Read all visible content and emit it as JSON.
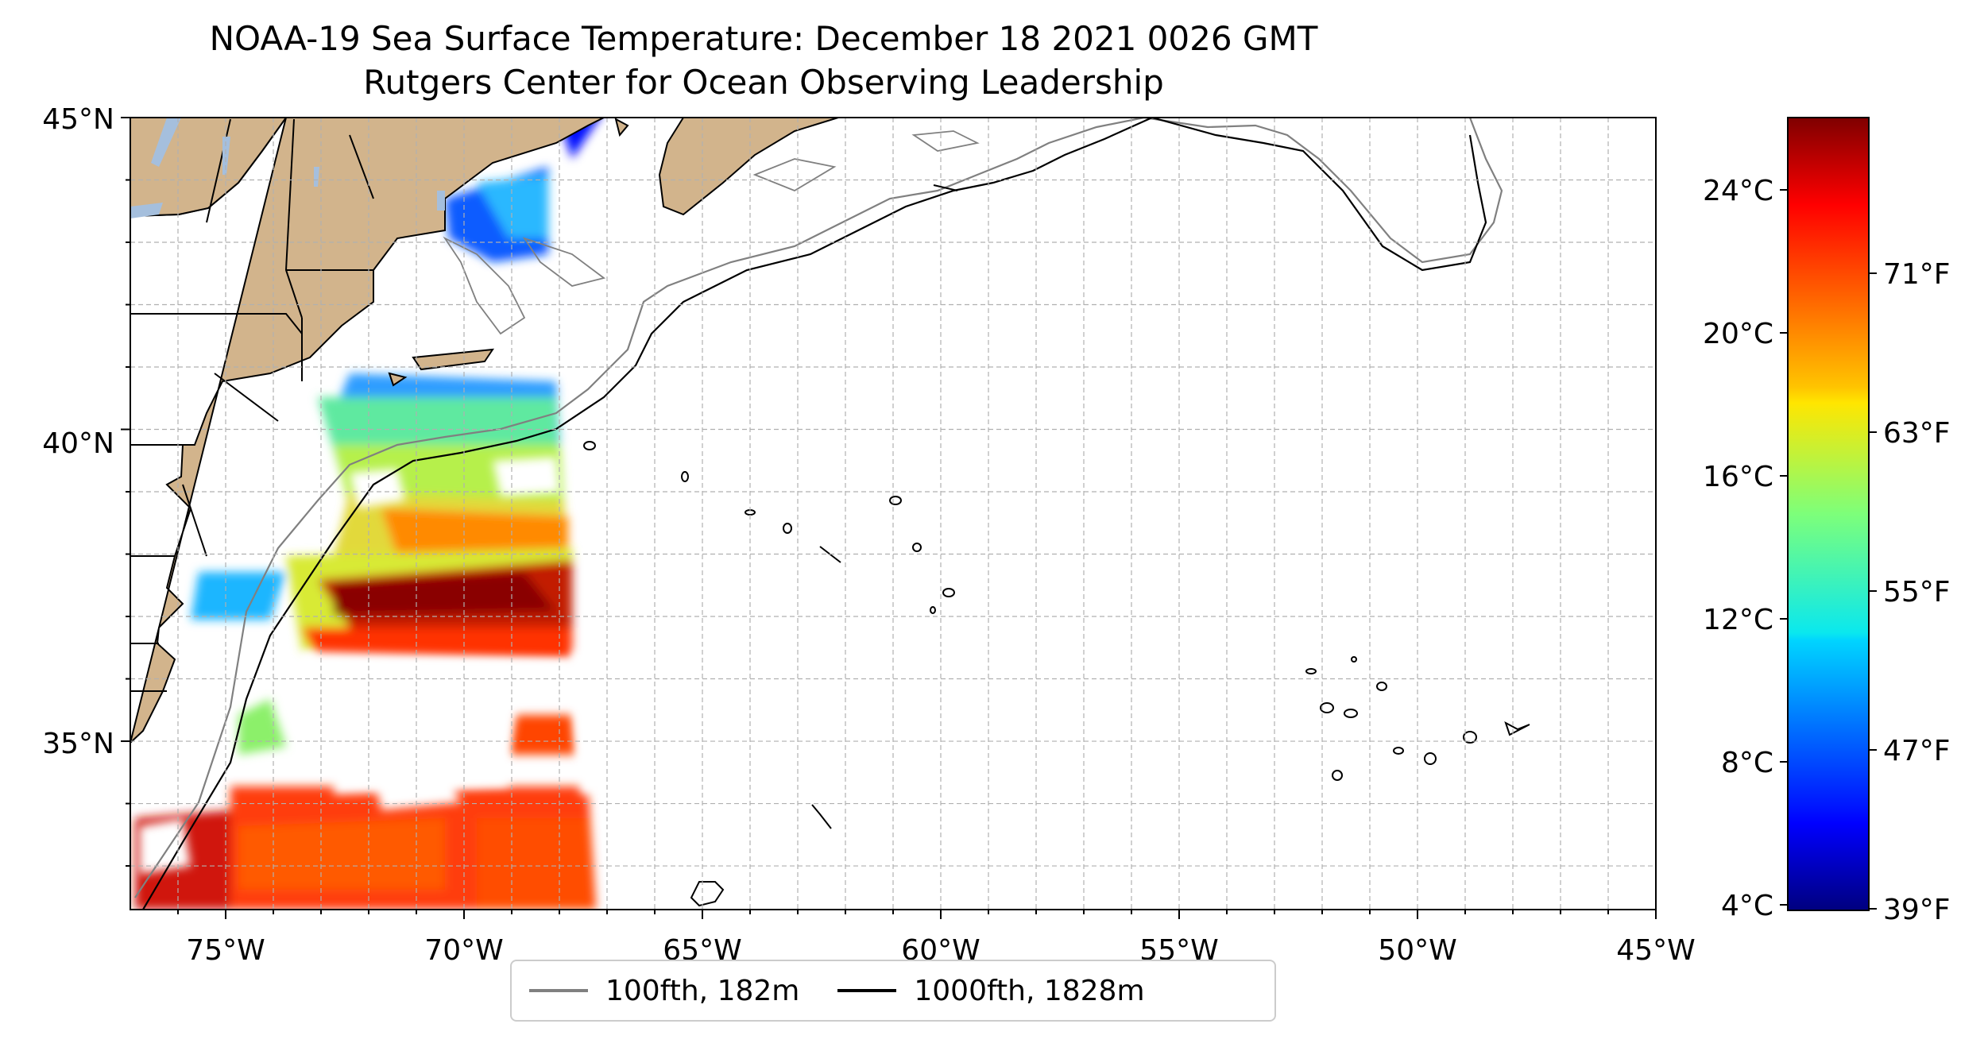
{
  "title": {
    "line1": "NOAA-19 Sea Surface Temperature: December 18 2021 0026 GMT",
    "line2": "Rutgers Center for Ocean Observing Leadership"
  },
  "map": {
    "lon_range": [
      -77,
      -45
    ],
    "lat_range": [
      32.3,
      45
    ],
    "lon_ticks": [
      "75°W",
      "70°W",
      "65°W",
      "60°W",
      "55°W",
      "50°W",
      "45°W"
    ],
    "lat_ticks": [
      "45°N",
      "40°N",
      "35°N"
    ],
    "grid": true,
    "colors": {
      "land": "#d2b48c",
      "lakes": "#a5bfdd",
      "ocean_nodata": "#ffffff",
      "grid": "#b0b0b0"
    }
  },
  "colorbar": {
    "colormap": "jet",
    "range_c": [
      4,
      26
    ],
    "celsius_ticks": [
      "24°C",
      "20°C",
      "16°C",
      "12°C",
      "8°C",
      "4°C"
    ],
    "fahrenheit_ticks": [
      "71°F",
      "63°F",
      "55°F",
      "47°F",
      "39°F"
    ]
  },
  "legend": {
    "items": [
      {
        "label": "100fth, 182m",
        "color": "#808080"
      },
      {
        "label": "1000fth, 1828m",
        "color": "#000000"
      }
    ]
  }
}
